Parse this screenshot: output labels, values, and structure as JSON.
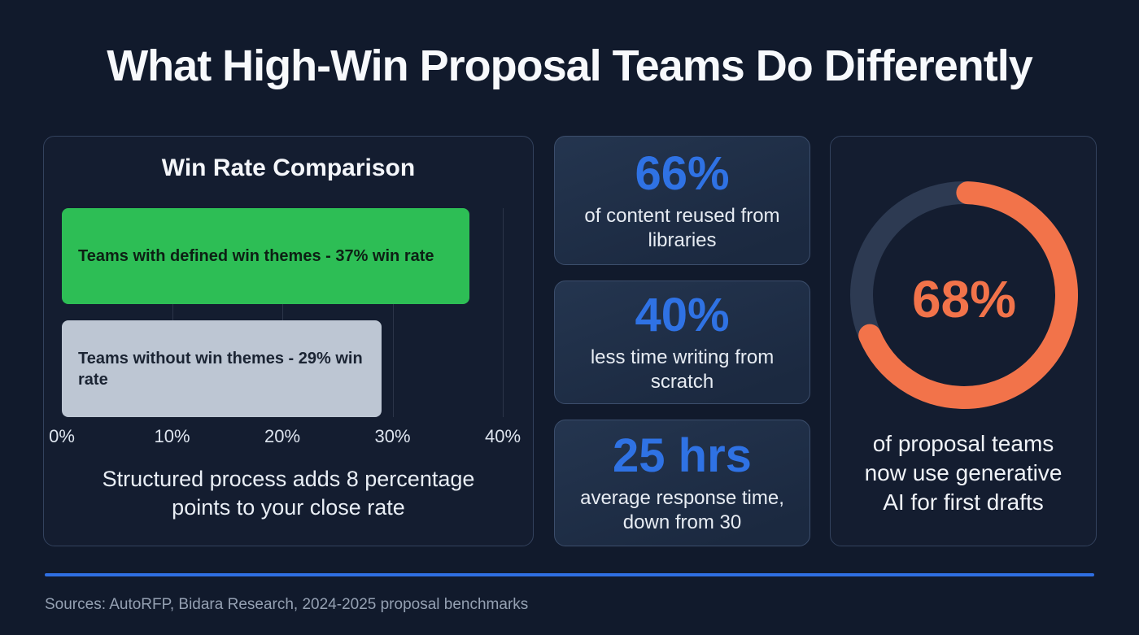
{
  "page_title": "What High-Win Proposal Teams Do Differently",
  "colors": {
    "background": "#111a2c",
    "panel_border": "#33425d",
    "card_background": "#1c2940",
    "accent_blue": "#2f72e4",
    "bar_green": "#2dbe55",
    "bar_gray": "#bdc6d3",
    "donut_orange": "#f2734a",
    "donut_track": "#2d3a52",
    "divider_blue": "#2f6fe3",
    "footer_text": "#94a0b2"
  },
  "chart_data": [
    {
      "type": "bar",
      "orientation": "horizontal",
      "title": "Win Rate Comparison",
      "categories": [
        "Teams with defined win themes",
        "Teams without win themes"
      ],
      "values": [
        37,
        29
      ],
      "bar_labels": [
        "Teams with defined win themes - 37% win rate",
        "Teams without win themes - 29% win rate"
      ],
      "bar_colors": [
        "#2dbe55",
        "#bdc6d3"
      ],
      "xlim": [
        0,
        40
      ],
      "tick_labels": [
        "0%",
        "10%",
        "20%",
        "30%",
        "40%"
      ],
      "grid": true,
      "annotation": "Structured process adds 8 percentage points to your close rate"
    },
    {
      "type": "donut",
      "value": 68,
      "max": 100,
      "center_label": "68%",
      "caption": "of proposal teams now use generative AI for first drafts",
      "arc_color": "#f2734a",
      "track_color": "#2d3a52"
    }
  ],
  "stat_cards": [
    {
      "value": "66%",
      "caption": "of content reused from libraries"
    },
    {
      "value": "40%",
      "caption": "less time writing from scratch"
    },
    {
      "value": "25 hrs",
      "caption": "average response time, down from 30"
    }
  ],
  "donut_panel": {
    "caption_line1": "of proposal teams",
    "caption_line2": "now use generative",
    "caption_line3": "AI for first drafts"
  },
  "footer": {
    "sources": "Sources: AutoRFP, Bidara Research, 2024-2025 proposal benchmarks"
  }
}
